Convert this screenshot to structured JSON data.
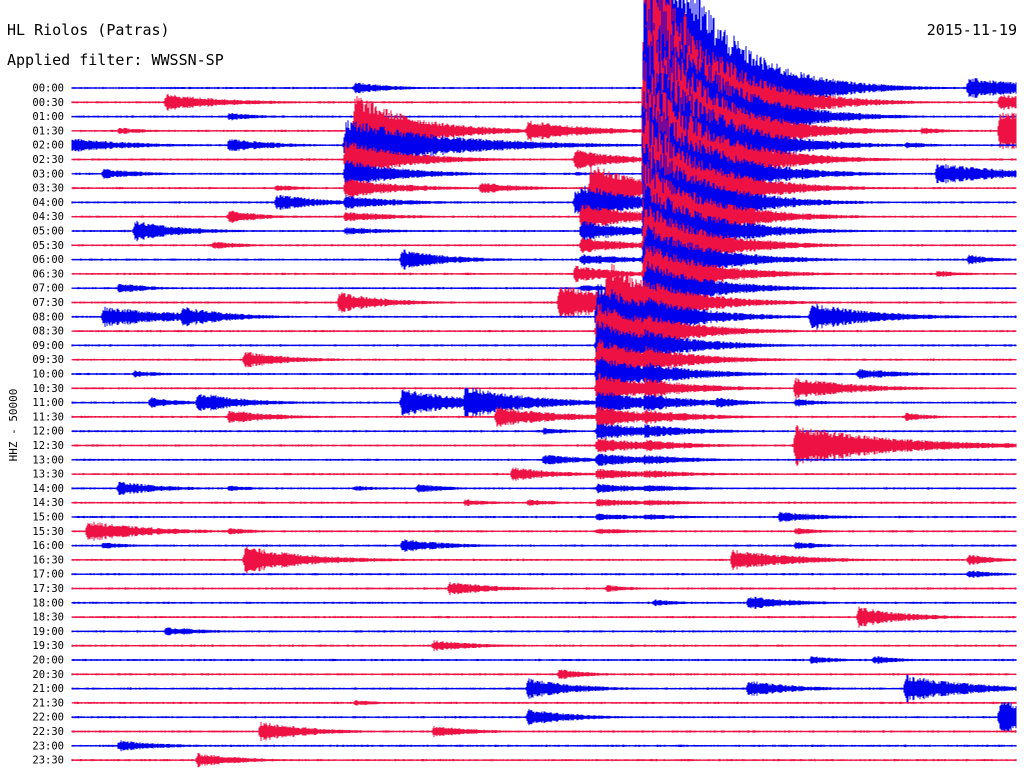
{
  "header": {
    "station": "HL Riolos (Patras)",
    "date": "2015-11-19",
    "filter": "Applied filter: WWSSN-SP"
  },
  "chart_data": {
    "type": "line",
    "title": "HL Riolos (Patras)",
    "date": "2015-11-19",
    "filter": "Applied filter: WWSSN-SP",
    "ylabel": "HHZ - 50000",
    "row_labels": [
      "00:00",
      "00:30",
      "01:00",
      "01:30",
      "02:00",
      "02:30",
      "03:00",
      "03:30",
      "04:00",
      "04:30",
      "05:00",
      "05:30",
      "06:00",
      "06:30",
      "07:00",
      "07:30",
      "08:00",
      "08:30",
      "09:00",
      "09:30",
      "10:00",
      "10:30",
      "11:00",
      "11:30",
      "12:00",
      "12:30",
      "13:00",
      "13:30",
      "14:00",
      "14:30",
      "15:00",
      "15:30",
      "16:00",
      "16:30",
      "17:00",
      "17:30",
      "18:00",
      "18:30",
      "19:00",
      "19:30",
      "20:00",
      "20:30",
      "21:00",
      "21:30",
      "22:00",
      "22:30",
      "23:00",
      "23:30"
    ],
    "series_colors": [
      "#0000ee",
      "#ee1144"
    ],
    "row_minutes": 30,
    "grid": false,
    "events": [
      {
        "row": 0,
        "minute": 9,
        "amp": 0.9,
        "dur": 1.2
      },
      {
        "row": 0,
        "minute": 28.5,
        "amp": 1.5,
        "dur": 2.5
      },
      {
        "row": 1,
        "minute": 3,
        "amp": 1.2,
        "dur": 2.0
      },
      {
        "row": 1,
        "minute": 22,
        "amp": 0.8,
        "dur": 1.0
      },
      {
        "row": 1,
        "minute": 29.5,
        "amp": 1.2,
        "dur": 1.5
      },
      {
        "row": 2,
        "minute": 5,
        "amp": 0.6,
        "dur": 1.0
      },
      {
        "row": 3,
        "minute": 1.5,
        "amp": 0.5,
        "dur": 1.0
      },
      {
        "row": 3,
        "minute": 14.5,
        "amp": 1.5,
        "dur": 2.0
      },
      {
        "row": 3,
        "minute": 19,
        "amp": 0.6,
        "dur": 1.0
      },
      {
        "row": 3,
        "minute": 27,
        "amp": 0.5,
        "dur": 1.0
      },
      {
        "row": 3,
        "minute": 29.5,
        "amp": 3.0,
        "dur": 2.5
      },
      {
        "row": 4,
        "minute": 0,
        "amp": 1.0,
        "dur": 2.0
      },
      {
        "row": 4,
        "minute": 5,
        "amp": 1.0,
        "dur": 1.5
      },
      {
        "row": 4,
        "minute": 9,
        "amp": 3.5,
        "dur": 3.0
      },
      {
        "row": 4,
        "minute": 10.5,
        "amp": 1.2,
        "dur": 1.5
      },
      {
        "row": 4,
        "minute": 26.5,
        "amp": 0.5,
        "dur": 1.0
      },
      {
        "row": 5,
        "minute": 9,
        "amp": 0.5,
        "dur": 1.5
      },
      {
        "row": 5,
        "minute": 16,
        "amp": 1.5,
        "dur": 1.5
      },
      {
        "row": 6,
        "minute": 1,
        "amp": 0.7,
        "dur": 1.5
      },
      {
        "row": 6,
        "minute": 16,
        "amp": 0.3,
        "dur": 1.0
      },
      {
        "row": 6,
        "minute": 27.5,
        "amp": 1.5,
        "dur": 2.5
      },
      {
        "row": 7,
        "minute": 6.5,
        "amp": 0.5,
        "dur": 1.0
      },
      {
        "row": 7,
        "minute": 13,
        "amp": 0.8,
        "dur": 1.5
      },
      {
        "row": 7,
        "minute": 20.5,
        "amp": 0.5,
        "dur": 1.0
      },
      {
        "row": 8,
        "minute": 6.5,
        "amp": 1.2,
        "dur": 1.5
      },
      {
        "row": 8,
        "minute": 16,
        "amp": 1.8,
        "dur": 2.0
      },
      {
        "row": 9,
        "minute": 5,
        "amp": 1.0,
        "dur": 1.0
      },
      {
        "row": 10,
        "minute": 2,
        "amp": 1.5,
        "dur": 1.5
      },
      {
        "row": 11,
        "minute": 4.5,
        "amp": 0.6,
        "dur": 1.0
      },
      {
        "row": 11,
        "minute": 21,
        "amp": 0.5,
        "dur": 1.0
      },
      {
        "row": 12,
        "minute": 10.5,
        "amp": 1.5,
        "dur": 1.5
      },
      {
        "row": 12,
        "minute": 28.5,
        "amp": 0.7,
        "dur": 1.0
      },
      {
        "row": 13,
        "minute": 16,
        "amp": 1.2,
        "dur": 1.5
      },
      {
        "row": 13,
        "minute": 27.5,
        "amp": 0.5,
        "dur": 1.0
      },
      {
        "row": 14,
        "minute": 1.5,
        "amp": 0.8,
        "dur": 1.0
      },
      {
        "row": 15,
        "minute": 8.5,
        "amp": 1.5,
        "dur": 1.5
      },
      {
        "row": 15,
        "minute": 15.5,
        "amp": 2.5,
        "dur": 2.5
      },
      {
        "row": 16,
        "minute": 1,
        "amp": 1.5,
        "dur": 2.5
      },
      {
        "row": 16,
        "minute": 3.5,
        "amp": 1.5,
        "dur": 1.5
      },
      {
        "row": 16,
        "minute": 23.5,
        "amp": 2.0,
        "dur": 2.0
      },
      {
        "row": 17,
        "minute": 20,
        "amp": 0.5,
        "dur": 1.0
      },
      {
        "row": 19,
        "minute": 5.5,
        "amp": 1.2,
        "dur": 1.5
      },
      {
        "row": 19,
        "minute": 17,
        "amp": 0.4,
        "dur": 1.0
      },
      {
        "row": 20,
        "minute": 2,
        "amp": 0.5,
        "dur": 1.0
      },
      {
        "row": 20,
        "minute": 18.5,
        "amp": 0.8,
        "dur": 1.5
      },
      {
        "row": 20,
        "minute": 25,
        "amp": 0.8,
        "dur": 1.5
      },
      {
        "row": 21,
        "minute": 18,
        "amp": 0.4,
        "dur": 1.0
      },
      {
        "row": 21,
        "minute": 23,
        "amp": 1.5,
        "dur": 2.0
      },
      {
        "row": 22,
        "minute": 2.5,
        "amp": 0.8,
        "dur": 1.0
      },
      {
        "row": 22,
        "minute": 4,
        "amp": 1.5,
        "dur": 1.5
      },
      {
        "row": 22,
        "minute": 10.5,
        "amp": 2.0,
        "dur": 2.0
      },
      {
        "row": 22,
        "minute": 12.5,
        "amp": 2.5,
        "dur": 2.0
      },
      {
        "row": 22,
        "minute": 20.5,
        "amp": 0.8,
        "dur": 1.0
      },
      {
        "row": 22,
        "minute": 23,
        "amp": 0.6,
        "dur": 1.0
      },
      {
        "row": 23,
        "minute": 5,
        "amp": 1.0,
        "dur": 1.5
      },
      {
        "row": 23,
        "minute": 13.5,
        "amp": 1.5,
        "dur": 2.0
      },
      {
        "row": 23,
        "minute": 26.5,
        "amp": 0.6,
        "dur": 1.0
      },
      {
        "row": 24,
        "minute": 15,
        "amp": 0.5,
        "dur": 1.0
      },
      {
        "row": 25,
        "minute": 23,
        "amp": 3.0,
        "dur": 3.0
      },
      {
        "row": 26,
        "minute": 15,
        "amp": 0.8,
        "dur": 1.5
      },
      {
        "row": 26,
        "minute": 18.5,
        "amp": 0.5,
        "dur": 1.0
      },
      {
        "row": 27,
        "minute": 14,
        "amp": 1.0,
        "dur": 1.5
      },
      {
        "row": 28,
        "minute": 1.5,
        "amp": 1.0,
        "dur": 1.5
      },
      {
        "row": 28,
        "minute": 5,
        "amp": 0.4,
        "dur": 1.0
      },
      {
        "row": 28,
        "minute": 9,
        "amp": 0.4,
        "dur": 1.0
      },
      {
        "row": 28,
        "minute": 11,
        "amp": 0.7,
        "dur": 1.0
      },
      {
        "row": 29,
        "minute": 12.5,
        "amp": 0.5,
        "dur": 1.0
      },
      {
        "row": 29,
        "minute": 14.5,
        "amp": 0.5,
        "dur": 1.0
      },
      {
        "row": 30,
        "minute": 22.5,
        "amp": 0.8,
        "dur": 1.5
      },
      {
        "row": 31,
        "minute": 0.5,
        "amp": 1.5,
        "dur": 2.0
      },
      {
        "row": 31,
        "minute": 5,
        "amp": 0.5,
        "dur": 1.0
      },
      {
        "row": 31,
        "minute": 23,
        "amp": 0.5,
        "dur": 1.0
      },
      {
        "row": 32,
        "minute": 1,
        "amp": 0.5,
        "dur": 1.0
      },
      {
        "row": 32,
        "minute": 10.5,
        "amp": 1.0,
        "dur": 1.5
      },
      {
        "row": 32,
        "minute": 23,
        "amp": 0.6,
        "dur": 1.0
      },
      {
        "row": 33,
        "minute": 5.5,
        "amp": 2.0,
        "dur": 2.0
      },
      {
        "row": 33,
        "minute": 21,
        "amp": 1.5,
        "dur": 2.0
      },
      {
        "row": 33,
        "minute": 28.5,
        "amp": 0.8,
        "dur": 1.0
      },
      {
        "row": 34,
        "minute": 28.5,
        "amp": 0.6,
        "dur": 1.0
      },
      {
        "row": 35,
        "minute": 12,
        "amp": 1.0,
        "dur": 1.5
      },
      {
        "row": 35,
        "minute": 17,
        "amp": 0.5,
        "dur": 1.0
      },
      {
        "row": 36,
        "minute": 18.5,
        "amp": 0.5,
        "dur": 1.0
      },
      {
        "row": 36,
        "minute": 21.5,
        "amp": 1.0,
        "dur": 1.5
      },
      {
        "row": 37,
        "minute": 25,
        "amp": 1.5,
        "dur": 1.5
      },
      {
        "row": 38,
        "minute": 3,
        "amp": 0.6,
        "dur": 1.5
      },
      {
        "row": 38,
        "minute": 3.5,
        "amp": 0.5,
        "dur": 1.0
      },
      {
        "row": 39,
        "minute": 11.5,
        "amp": 0.8,
        "dur": 1.5
      },
      {
        "row": 40,
        "minute": 23.5,
        "amp": 0.6,
        "dur": 1.0
      },
      {
        "row": 40,
        "minute": 25.5,
        "amp": 0.6,
        "dur": 1.0
      },
      {
        "row": 41,
        "minute": 15.5,
        "amp": 0.8,
        "dur": 1.0
      },
      {
        "row": 42,
        "minute": 14.5,
        "amp": 1.5,
        "dur": 1.5
      },
      {
        "row": 42,
        "minute": 21.5,
        "amp": 1.2,
        "dur": 1.5
      },
      {
        "row": 42,
        "minute": 26.5,
        "amp": 2.0,
        "dur": 2.0
      },
      {
        "row": 43,
        "minute": 9,
        "amp": 0.4,
        "dur": 1.0
      },
      {
        "row": 44,
        "minute": 14.5,
        "amp": 1.2,
        "dur": 1.5
      },
      {
        "row": 44,
        "minute": 29.5,
        "amp": 2.5,
        "dur": 2.5
      },
      {
        "row": 45,
        "minute": 6,
        "amp": 1.5,
        "dur": 1.5
      },
      {
        "row": 45,
        "minute": 11.5,
        "amp": 0.8,
        "dur": 1.5
      },
      {
        "row": 46,
        "minute": 1.5,
        "amp": 0.8,
        "dur": 1.5
      },
      {
        "row": 47,
        "minute": 4,
        "amp": 1.0,
        "dur": 1.5
      }
    ],
    "large_events": [
      {
        "row": 3,
        "minute": 9,
        "peak_rows": 5.5,
        "decay_rows": 3.0
      },
      {
        "row": 7,
        "minute": 16.5,
        "peak_rows": 3.5,
        "decay_rows": 3.5
      },
      {
        "row": 15,
        "minute": 17,
        "peak_rows": 6.0,
        "decay_rows": 6.0
      },
      {
        "row": 0,
        "minute": 18.5,
        "peak_rows": 30.0,
        "decay_rows": 7.0
      }
    ]
  }
}
